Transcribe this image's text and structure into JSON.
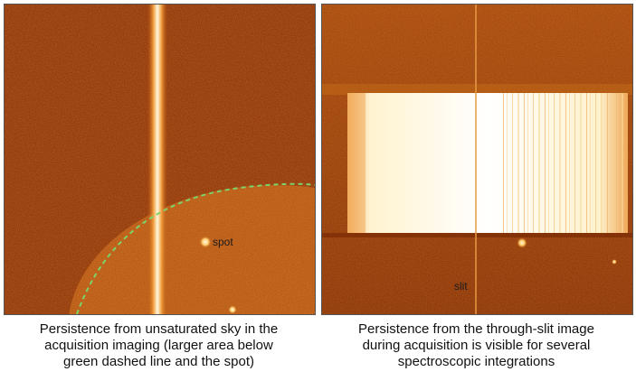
{
  "left_panel": {
    "annotation": "spot"
  },
  "right_panel": {
    "annotation": "slit"
  },
  "captions": {
    "left": [
      "Persistence from unsaturated sky in the",
      "acquisition imaging (larger area below",
      "green dashed line and the spot)"
    ],
    "right": [
      "Persistence from the through-slit image",
      "during acquisition is visible for several",
      "spectroscopic integrations"
    ]
  },
  "colors": {
    "background_dark": "#8a2f02",
    "background_mid": "#b2500c",
    "bright": "#fff6d8",
    "dashed_line": "#7bd36a"
  }
}
